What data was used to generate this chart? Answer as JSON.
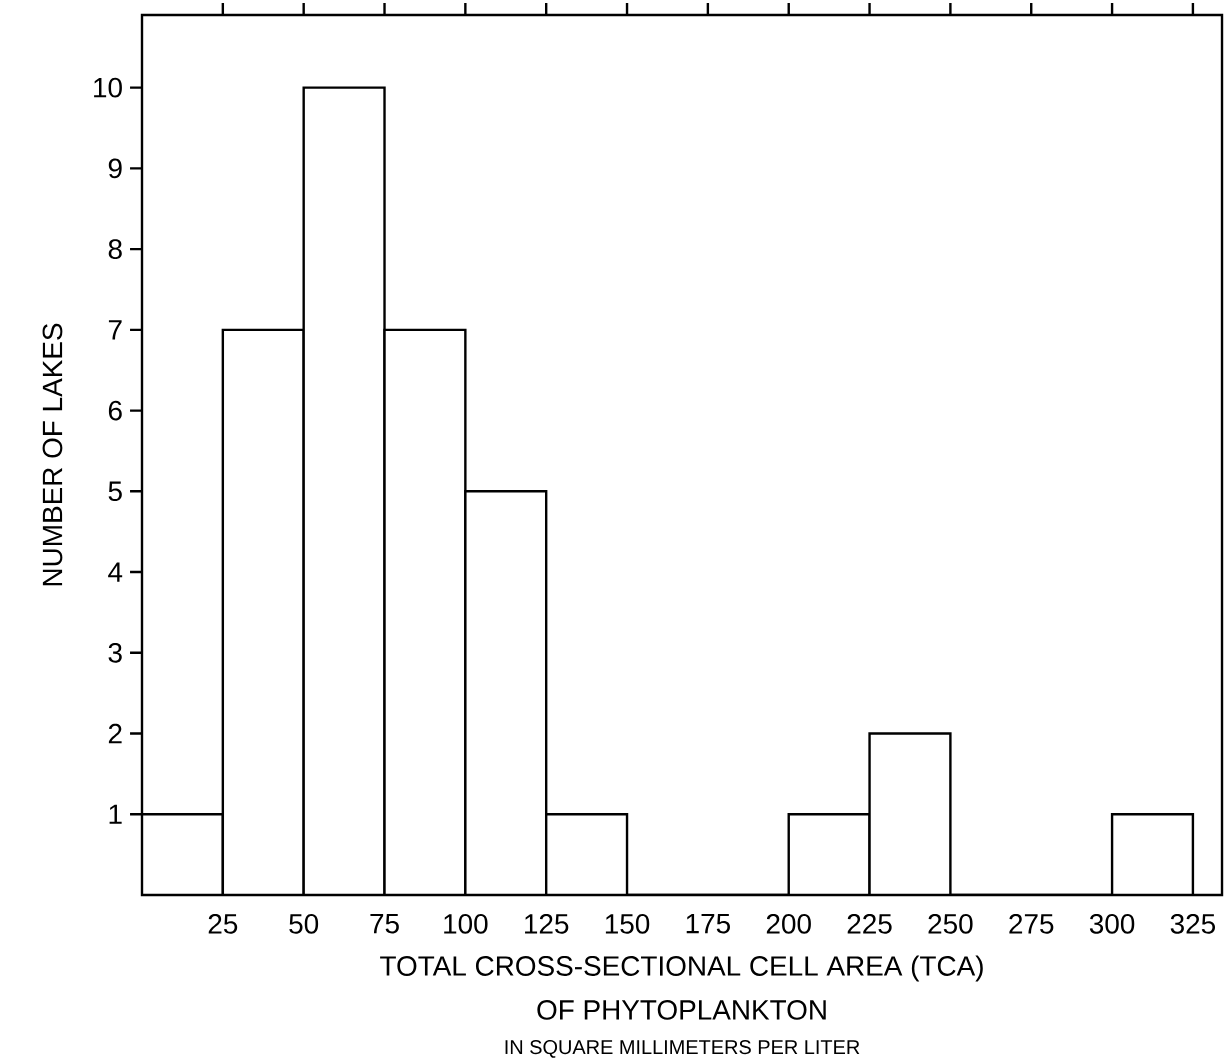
{
  "chart_data": {
    "type": "histogram",
    "xlabel": "TOTAL CROSS-SECTIONAL CELL AREA (TCA)",
    "ylabel": "NUMBER OF LAKES",
    "annotations": [
      "OF PHYTOPLANKTON",
      "IN  SQUARE MILLIMETERS PER LITER"
    ],
    "bins": [
      0,
      25,
      50,
      75,
      100,
      125,
      150,
      175,
      200,
      225,
      250,
      275,
      300,
      325
    ],
    "values": [
      1,
      7,
      10,
      7,
      5,
      1,
      0,
      0,
      1,
      2,
      0,
      0,
      1
    ],
    "color": "#ffffff",
    "xlim": [
      0,
      334
    ],
    "ylim": [
      0,
      10.9
    ],
    "xticks": [
      25,
      50,
      75,
      100,
      125,
      150,
      175,
      200,
      225,
      250,
      275,
      300,
      325
    ],
    "yticks": [
      1,
      2,
      3,
      4,
      5,
      6,
      7,
      8,
      9,
      10
    ],
    "grid": false
  }
}
